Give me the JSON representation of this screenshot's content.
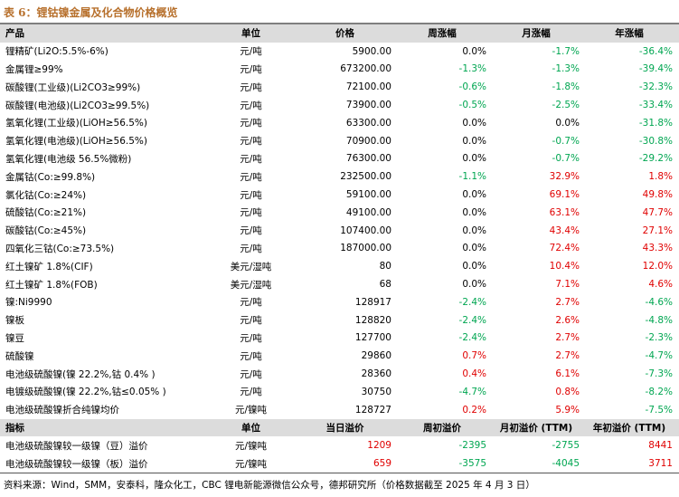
{
  "title": "表 6：锂钴镍金属及化合物价格概览",
  "table": {
    "header": [
      "产品",
      "单位",
      "价格",
      "周涨幅",
      "月涨幅",
      "年涨幅"
    ],
    "rows": [
      [
        "锂精矿(Li2O:5.5%-6%)",
        "元/吨",
        "5900.00",
        "0.0%",
        "-1.7%",
        "-36.4%"
      ],
      [
        "金属锂≥99%",
        "元/吨",
        "673200.00",
        "-1.3%",
        "-1.3%",
        "-39.4%"
      ],
      [
        "碳酸锂(工业级)(Li2CO3≥99%)",
        "元/吨",
        "72100.00",
        "-0.6%",
        "-1.8%",
        "-32.3%"
      ],
      [
        "碳酸锂(电池级)(Li2CO3≥99.5%)",
        "元/吨",
        "73900.00",
        "-0.5%",
        "-2.5%",
        "-33.4%"
      ],
      [
        "氢氧化锂(工业级)(LiOH≥56.5%)",
        "元/吨",
        "63300.00",
        "0.0%",
        "0.0%",
        "-31.8%"
      ],
      [
        "氢氧化锂(电池级)(LiOH≥56.5%)",
        "元/吨",
        "70900.00",
        "0.0%",
        "-0.7%",
        "-30.8%"
      ],
      [
        "氢氧化锂(电池级 56.5%微粉)",
        "元/吨",
        "76300.00",
        "0.0%",
        "-0.7%",
        "-29.2%"
      ],
      [
        "金属钴(Co:≥99.8%)",
        "元/吨",
        "232500.00",
        "-1.1%",
        "32.9%",
        "1.8%"
      ],
      [
        "氯化钴(Co:≥24%)",
        "元/吨",
        "59100.00",
        "0.0%",
        "69.1%",
        "49.8%"
      ],
      [
        "硫酸钴(Co:≥21%)",
        "元/吨",
        "49100.00",
        "0.0%",
        "63.1%",
        "47.7%"
      ],
      [
        "碳酸钴(Co:≥45%)",
        "元/吨",
        "107400.00",
        "0.0%",
        "43.4%",
        "27.1%"
      ],
      [
        "四氧化三钴(Co:≥73.5%)",
        "元/吨",
        "187000.00",
        "0.0%",
        "72.4%",
        "43.3%"
      ],
      [
        "红土镍矿 1.8%(CIF)",
        "美元/湿吨",
        "80",
        "0.0%",
        "10.4%",
        "12.0%"
      ],
      [
        "红土镍矿 1.8%(FOB)",
        "美元/湿吨",
        "68",
        "0.0%",
        "7.1%",
        "4.6%"
      ],
      [
        "镍:Ni9990",
        "元/吨",
        "128917",
        "-2.4%",
        "2.7%",
        "-4.6%"
      ],
      [
        "镍板",
        "元/吨",
        "128820",
        "-2.4%",
        "2.6%",
        "-4.8%"
      ],
      [
        "镍豆",
        "元/吨",
        "127700",
        "-2.4%",
        "2.7%",
        "-2.3%"
      ],
      [
        "硫酸镍",
        "元/吨",
        "29860",
        "0.7%",
        "2.7%",
        "-4.7%"
      ],
      [
        "电池级硫酸镍(镍 22.2%,钴 0.4% )",
        "元/吨",
        "28360",
        "0.4%",
        "6.1%",
        "-7.3%"
      ],
      [
        "电镀级硫酸镍(镍 22.2%,钴≤0.05% )",
        "元/吨",
        "30750",
        "-4.7%",
        "0.8%",
        "-8.2%"
      ],
      [
        "电池级硫酸镍折合纯镍均价",
        "元/镍吨",
        "128727",
        "0.2%",
        "5.9%",
        "-7.5%"
      ]
    ]
  },
  "premium_table": {
    "header": [
      "指标",
      "单位",
      "当日溢价",
      "周初溢价",
      "月初溢价 (TTM)",
      "年初溢价 (TTM)"
    ],
    "rows": [
      [
        "电池级硫酸镍较一级镍（豆）溢价",
        "元/镍吨",
        "1209",
        "-2395",
        "-2755",
        "8441"
      ],
      [
        "电池级硫酸镍较一级镍（板）溢价",
        "元/镍吨",
        "659",
        "-3575",
        "-4045",
        "3711"
      ]
    ]
  },
  "source": "资料来源：Wind，SMM，安泰科，隆众化工，CBC 锂电新能源微信公众号，德邦研究所（价格数据截至 2025 年 4 月 3 日）"
}
